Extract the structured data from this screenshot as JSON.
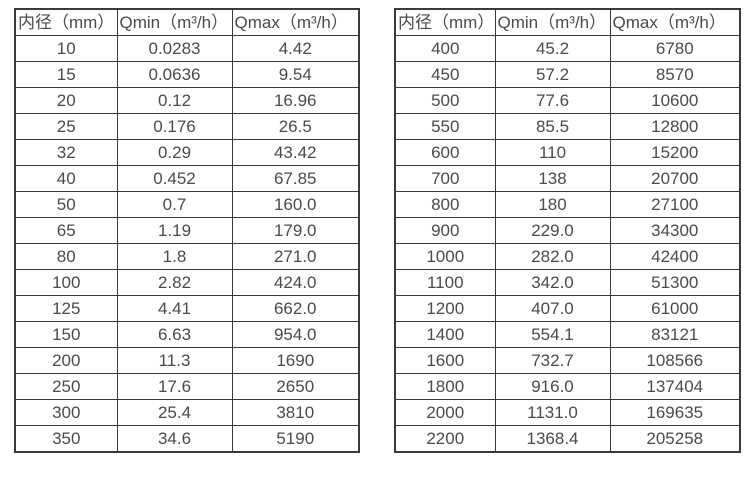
{
  "colors": {
    "background": "#ffffff",
    "border": "#3a3a3a",
    "text": "#4a4a4a"
  },
  "tables": [
    {
      "name": "flow-table-small-diameters",
      "headers": [
        "内径（mm）",
        "Qmin（m³/h）",
        "Qmax（m³/h）"
      ],
      "rows": [
        [
          "10",
          "0.0283",
          "4.42"
        ],
        [
          "15",
          "0.0636",
          "9.54"
        ],
        [
          "20",
          "0.12",
          "16.96"
        ],
        [
          "25",
          "0.176",
          "26.5"
        ],
        [
          "32",
          "0.29",
          "43.42"
        ],
        [
          "40",
          "0.452",
          "67.85"
        ],
        [
          "50",
          "0.7",
          "160.0"
        ],
        [
          "65",
          "1.19",
          "179.0"
        ],
        [
          "80",
          "1.8",
          "271.0"
        ],
        [
          "100",
          "2.82",
          "424.0"
        ],
        [
          "125",
          "4.41",
          "662.0"
        ],
        [
          "150",
          "6.63",
          "954.0"
        ],
        [
          "200",
          "11.3",
          "1690"
        ],
        [
          "250",
          "17.6",
          "2650"
        ],
        [
          "300",
          "25.4",
          "3810"
        ],
        [
          "350",
          "34.6",
          "5190"
        ]
      ]
    },
    {
      "name": "flow-table-large-diameters",
      "headers": [
        "内径（mm）",
        "Qmin（m³/h）",
        "Qmax（m³/h）"
      ],
      "rows": [
        [
          "400",
          "45.2",
          "6780"
        ],
        [
          "450",
          "57.2",
          "8570"
        ],
        [
          "500",
          "77.6",
          "10600"
        ],
        [
          "550",
          "85.5",
          "12800"
        ],
        [
          "600",
          "110",
          "15200"
        ],
        [
          "700",
          "138",
          "20700"
        ],
        [
          "800",
          "180",
          "27100"
        ],
        [
          "900",
          "229.0",
          "34300"
        ],
        [
          "1000",
          "282.0",
          "42400"
        ],
        [
          "1100",
          "342.0",
          "51300"
        ],
        [
          "1200",
          "407.0",
          "61000"
        ],
        [
          "1400",
          "554.1",
          "83121"
        ],
        [
          "1600",
          "732.7",
          "108566"
        ],
        [
          "1800",
          "916.0",
          "137404"
        ],
        [
          "2000",
          "1131.0",
          "169635"
        ],
        [
          "2200",
          "1368.4",
          "205258"
        ]
      ]
    }
  ]
}
